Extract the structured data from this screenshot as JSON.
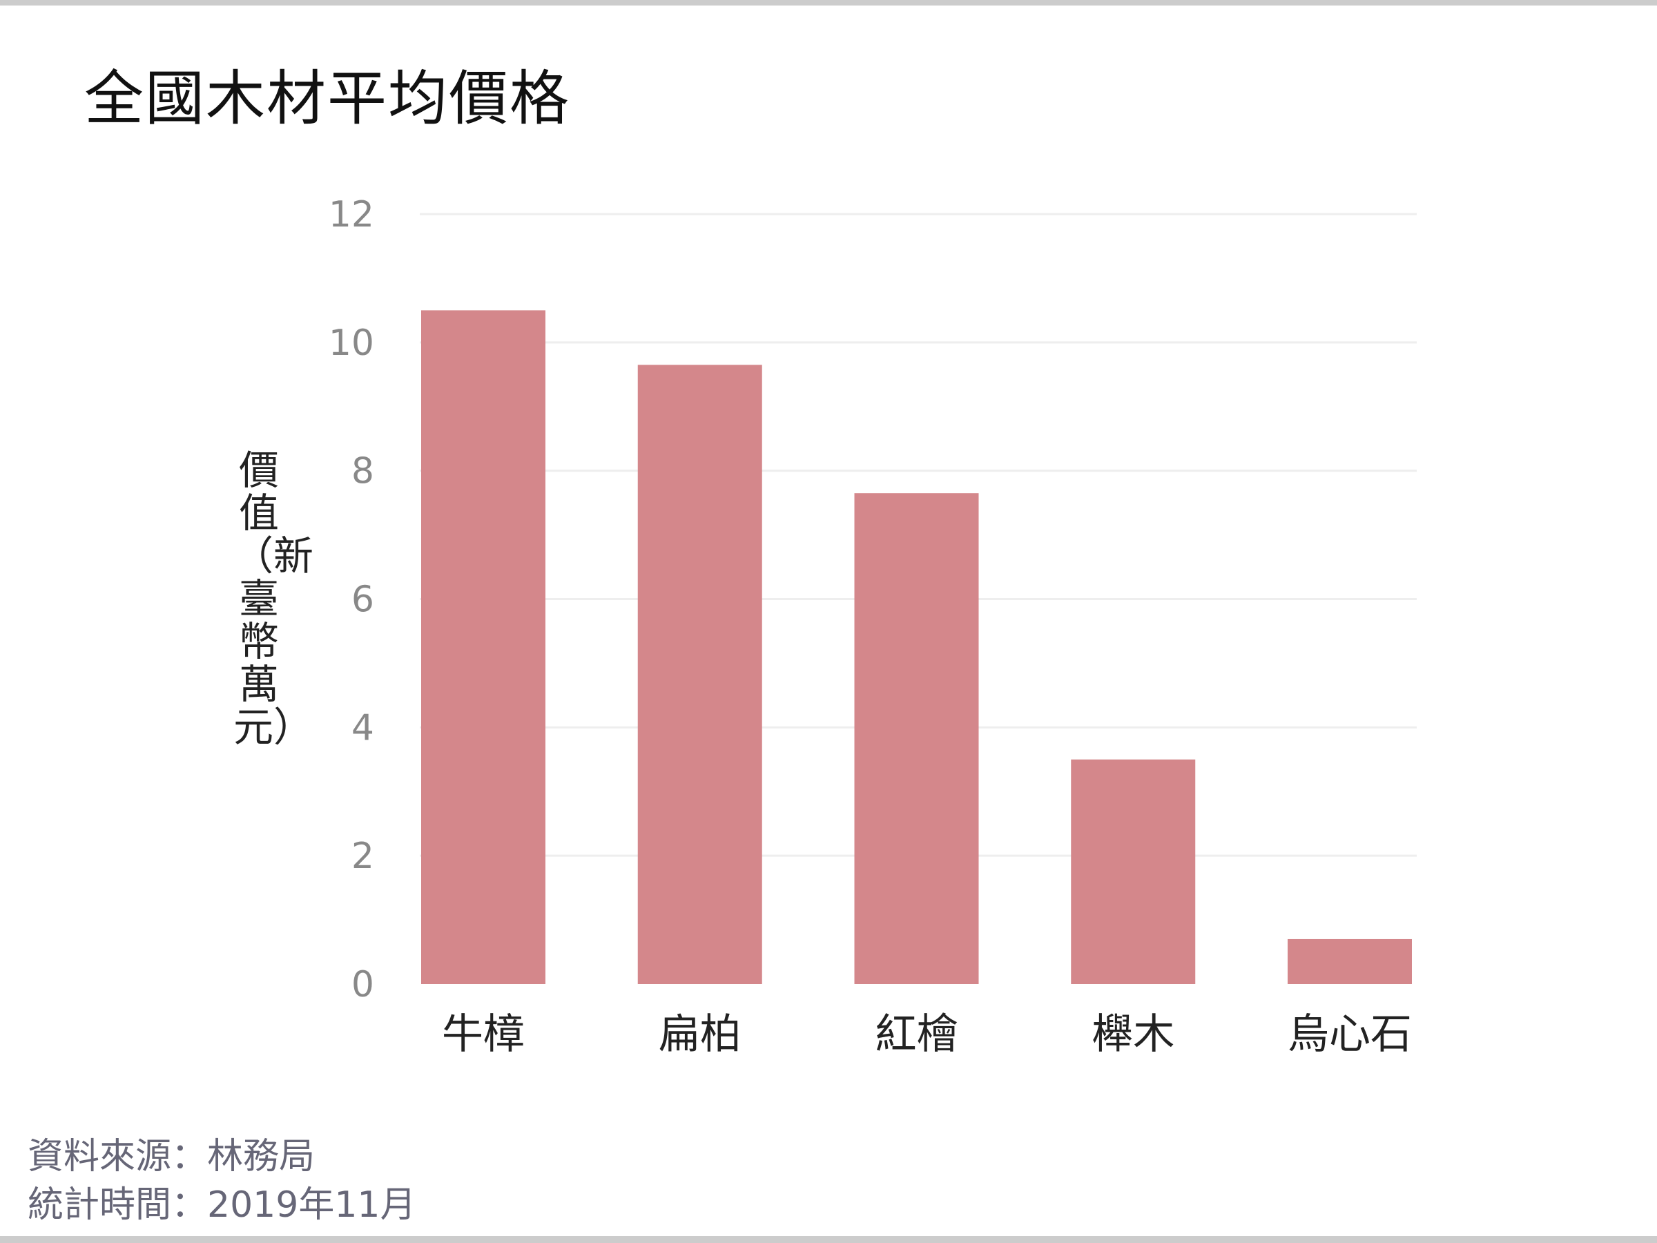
{
  "chart_data": {
    "type": "bar",
    "title": "全國木材平均價格",
    "ylabel": "價值（新臺幣萬元）",
    "xlabel": "",
    "categories": [
      "牛樟",
      "扁柏",
      "紅檜",
      "櫸木",
      "烏心石"
    ],
    "values": [
      10.5,
      9.65,
      7.65,
      3.5,
      0.7
    ],
    "ylim": [
      0,
      12
    ],
    "yticks": [
      0,
      2,
      4,
      6,
      8,
      10,
      12
    ],
    "grid": true,
    "legend": "none"
  },
  "colors": {
    "bar": "#d4878b",
    "grid": "#eeeeee",
    "tick_text": "#888888"
  },
  "footer": {
    "source": "資料來源：林務局",
    "period": "統計時間：2019年11月"
  }
}
